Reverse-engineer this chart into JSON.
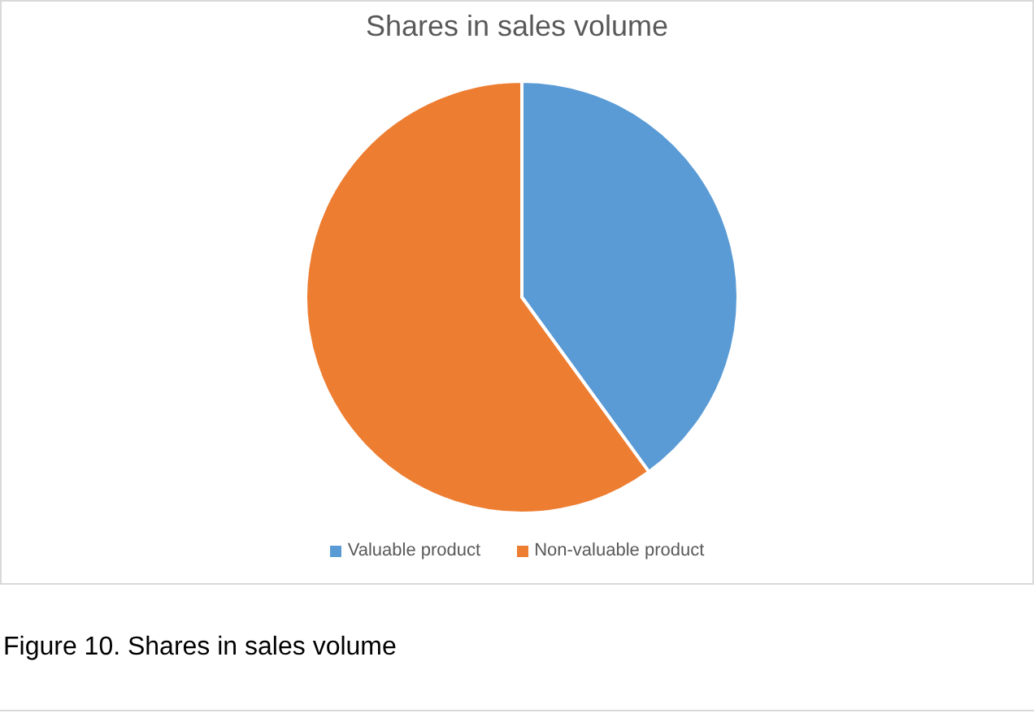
{
  "chart_data": {
    "type": "pie",
    "title": "Shares in sales volume",
    "categories": [
      "Valuable product",
      "Non-valuable product"
    ],
    "values": [
      40,
      60
    ],
    "colors": [
      "#5b9bd5",
      "#ed7d31"
    ],
    "legend": "bottom",
    "annotations": [
      "Figure 10. Shares in sales volume"
    ]
  }
}
